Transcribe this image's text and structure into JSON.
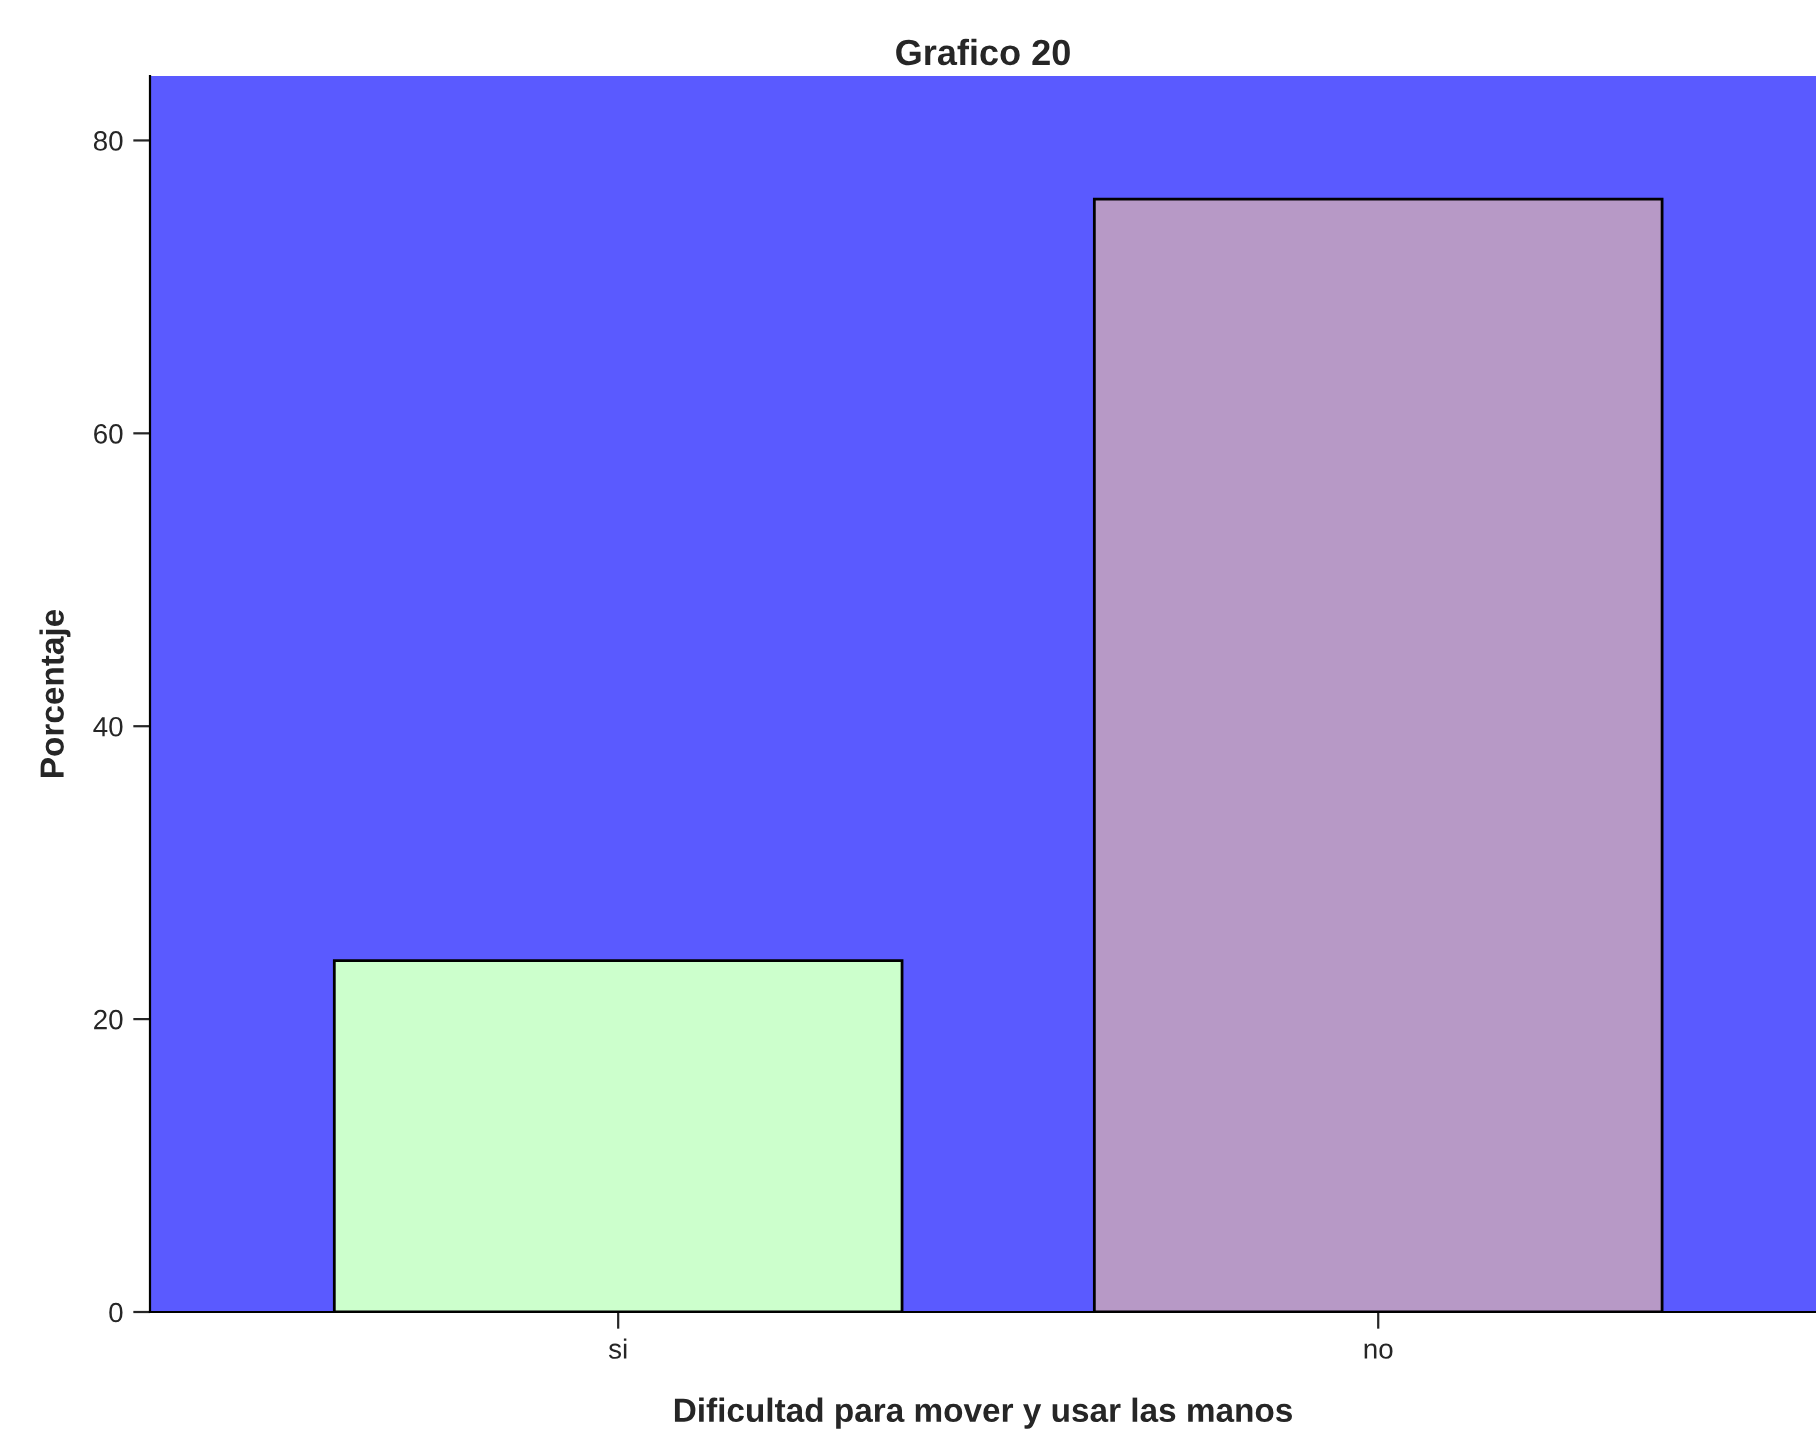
{
  "chart_data": {
    "type": "bar",
    "title": "Grafico 20",
    "xlabel": "Dificultad para mover y usar las manos",
    "ylabel": "Porcentaje",
    "categories": [
      "si",
      "no"
    ],
    "values": [
      24,
      76
    ],
    "colors": [
      "#ccffcc",
      "#b799c6"
    ],
    "ylim": [
      0,
      84.4
    ],
    "yticks": [
      0,
      20,
      40,
      60,
      80
    ],
    "grid": false,
    "legend": false
  }
}
